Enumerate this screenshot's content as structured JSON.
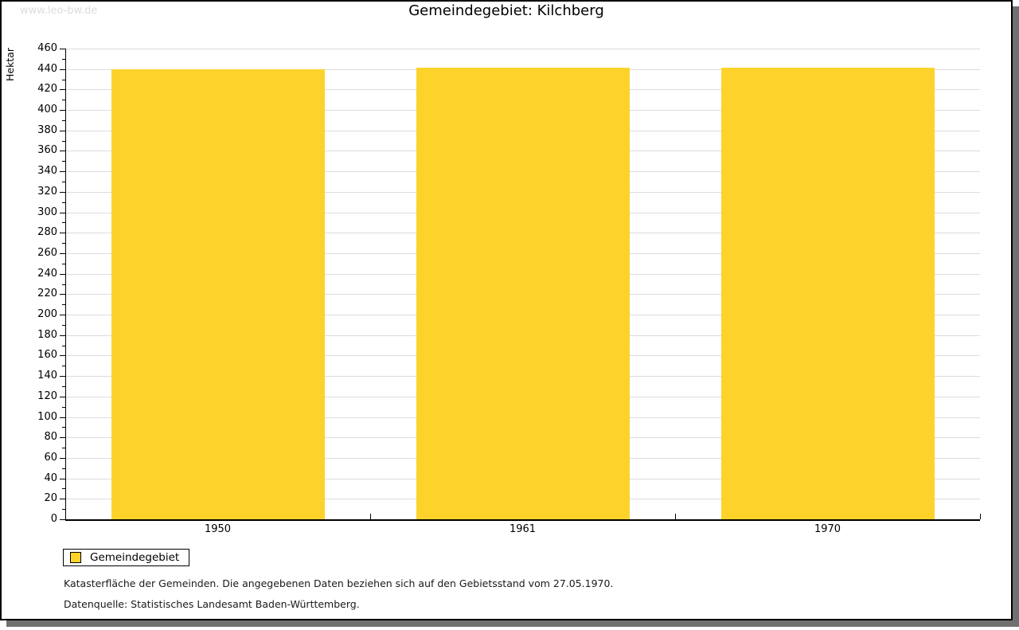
{
  "watermark": "www.leo-bw.de",
  "chart_data": {
    "type": "bar",
    "title": "Gemeindegebiet: Kilchberg",
    "ylabel": "Hektar",
    "xlabel": "",
    "categories": [
      "1950",
      "1961",
      "1970"
    ],
    "series": [
      {
        "name": "Gemeindegebiet",
        "values": [
          440,
          441,
          441
        ]
      }
    ],
    "ylim": [
      0,
      460
    ],
    "y_major_step": 20,
    "y_minor_step": 10,
    "grid": true,
    "bar_color": "#fdd32b",
    "legend_position": "bottom-left"
  },
  "legend": {
    "label": "Gemeindegebiet",
    "swatch_color": "#fdd32b"
  },
  "notes": [
    "Katasterfläche der Gemeinden. Die angegebenen Daten beziehen sich auf den Gebietsstand vom 27.05.1970.",
    "Datenquelle: Statistisches Landesamt Baden-Württemberg."
  ],
  "colors": {
    "bar": "#fdd32b",
    "grid": "#dcdcdc",
    "axis": "#000000",
    "watermark": "#dcdcdc",
    "frame_shadow": "#707070"
  }
}
